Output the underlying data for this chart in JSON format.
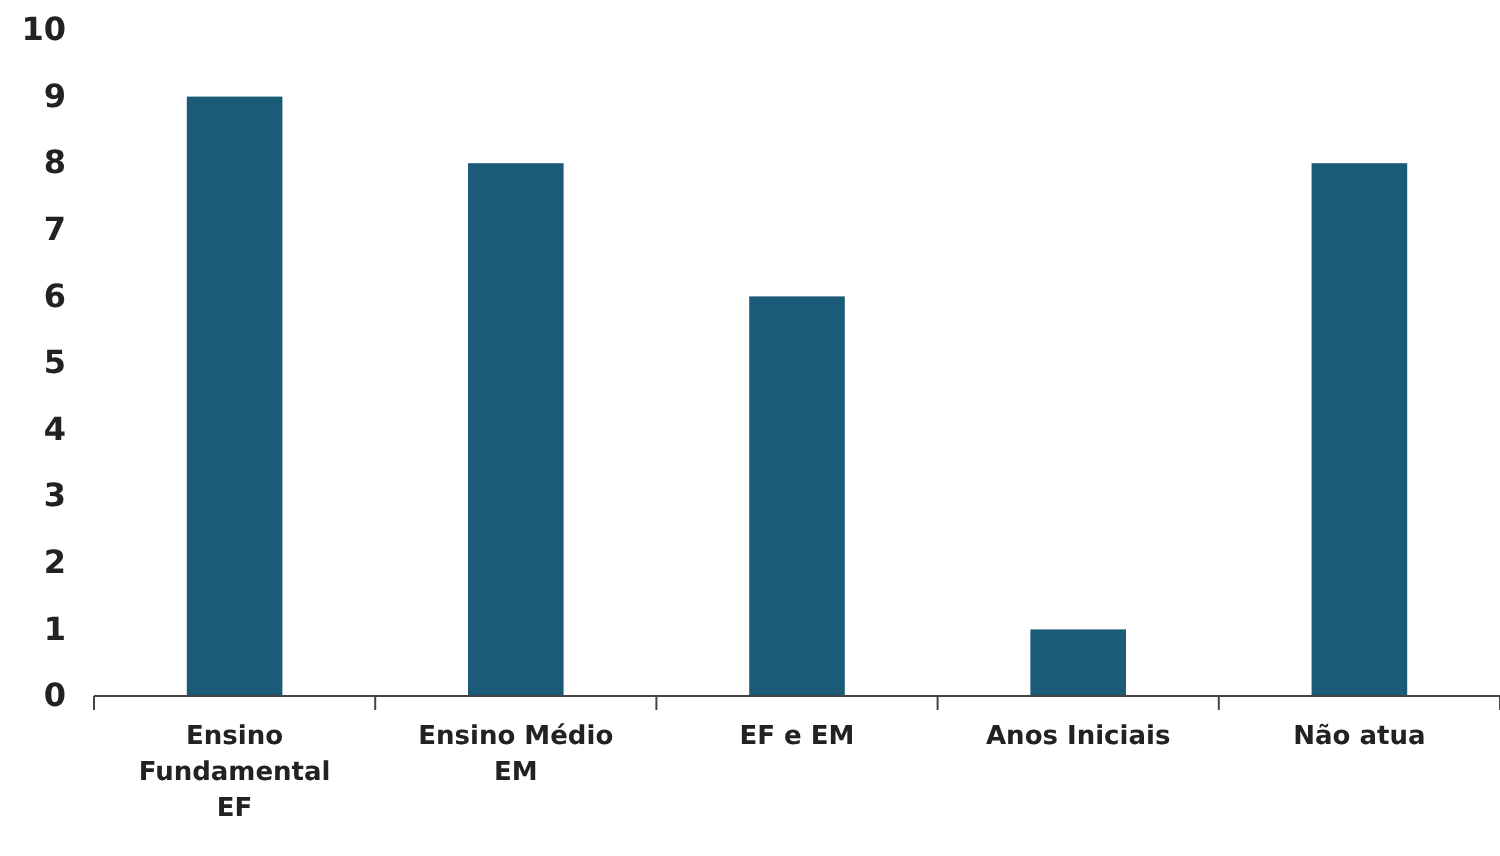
{
  "chart_data": {
    "type": "bar",
    "categories": [
      "Ensino\nFundamental\nEF",
      "Ensino Médio\nEM",
      "EF e EM",
      "Anos Iniciais",
      "Não atua"
    ],
    "values": [
      9,
      8,
      6,
      1,
      8
    ],
    "color": "#1b5b78",
    "ylim": [
      0,
      10
    ],
    "yticks": [
      0,
      1,
      2,
      3,
      4,
      5,
      6,
      7,
      8,
      9,
      10
    ]
  }
}
